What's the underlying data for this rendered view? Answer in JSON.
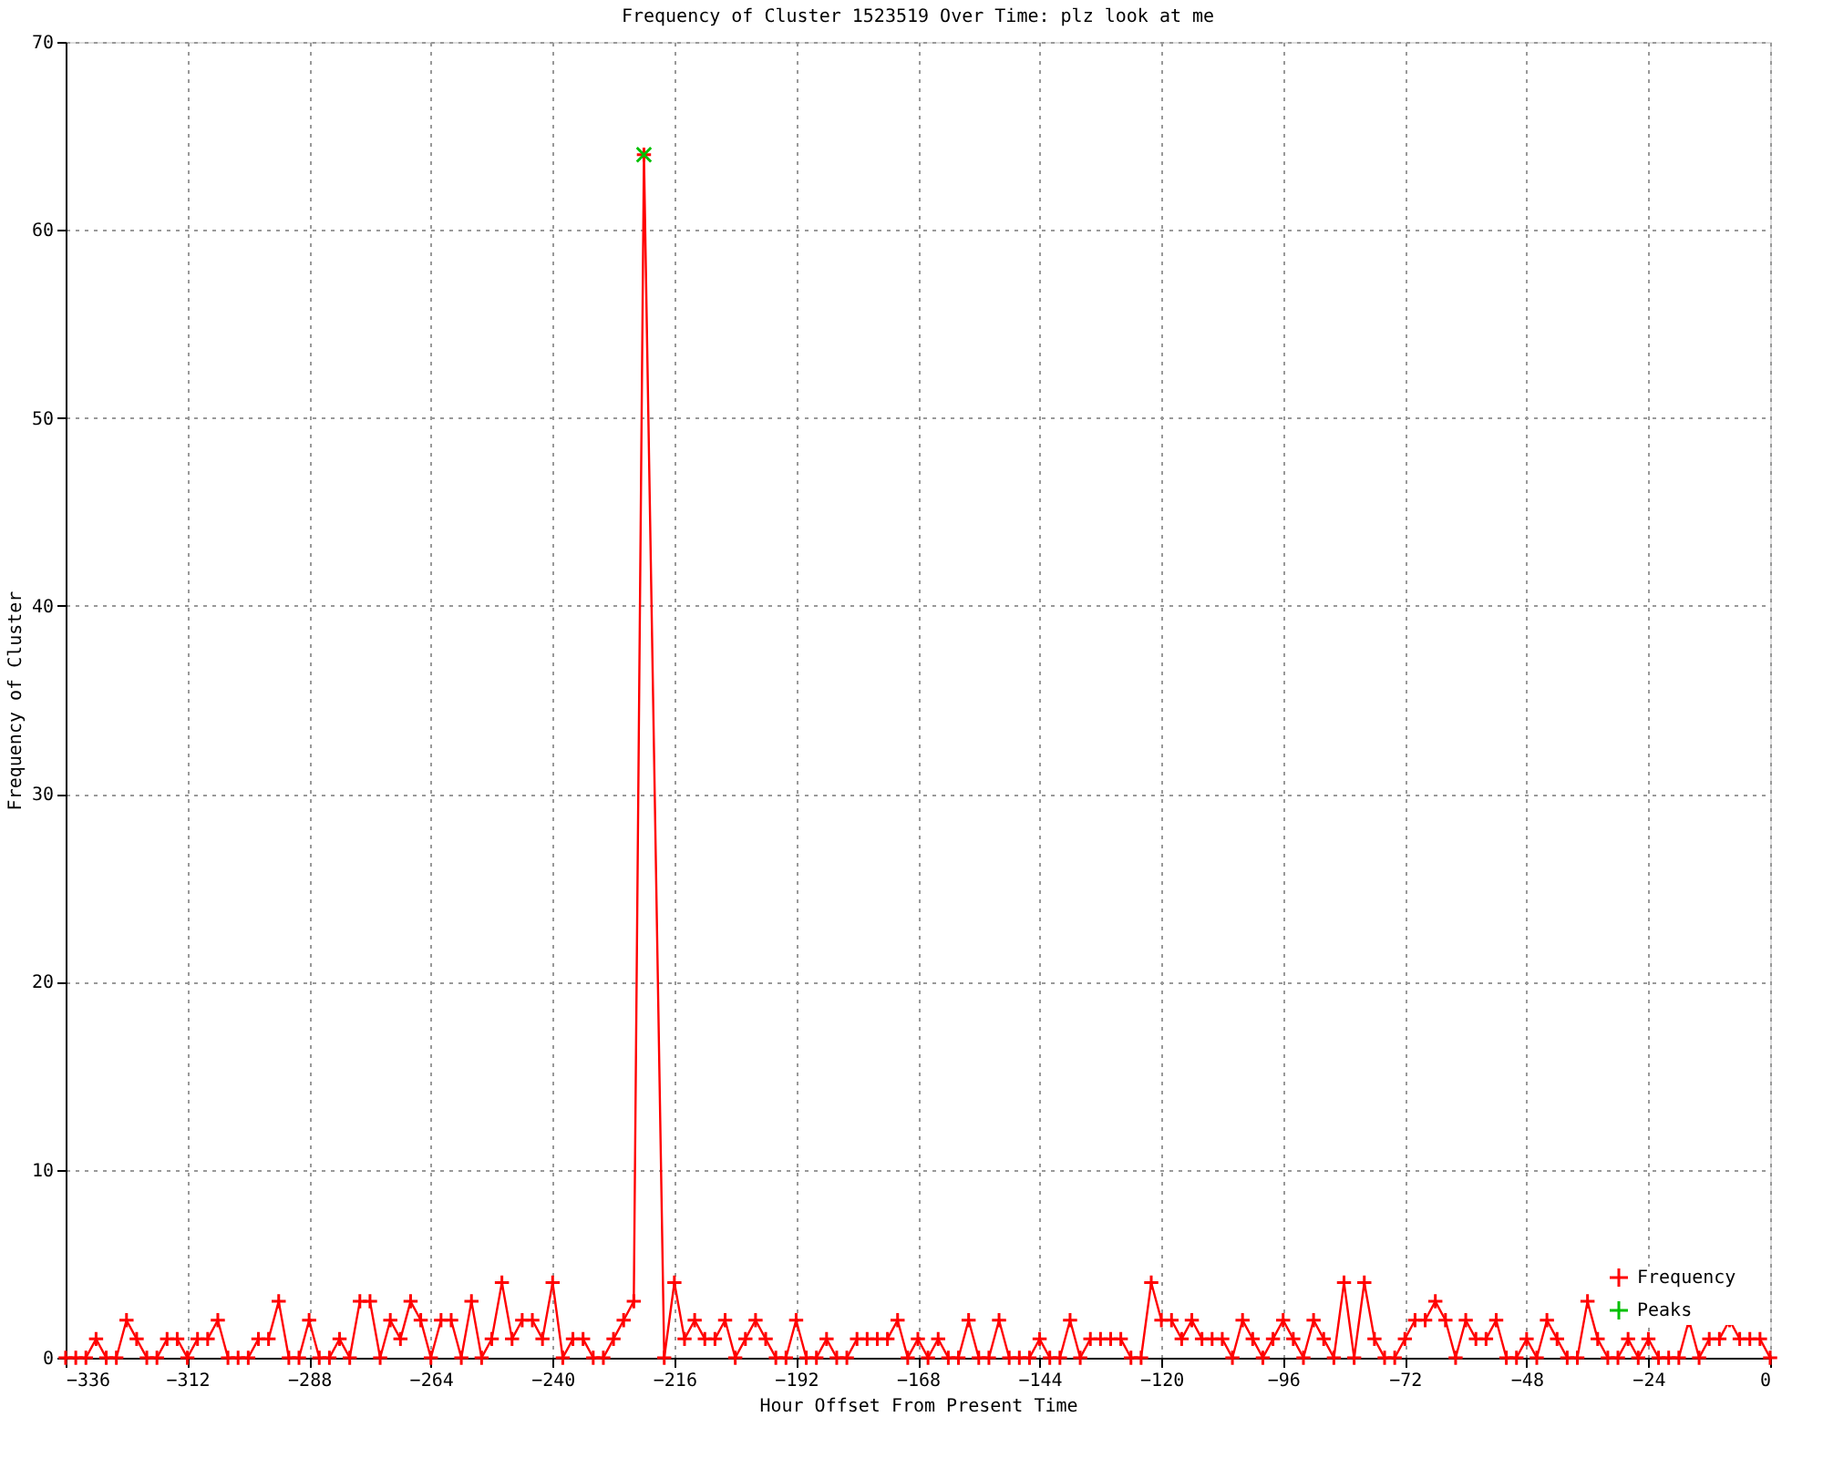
{
  "chart_data": {
    "type": "line",
    "title": "Frequency of Cluster 1523519 Over Time: plz look at me",
    "xlabel": "Hour Offset From Present Time",
    "ylabel": "Frequency of Cluster",
    "xlim": [
      -336,
      0
    ],
    "xticks": [
      -336,
      -312,
      -288,
      -264,
      -240,
      -216,
      -192,
      -168,
      -144,
      -120,
      -96,
      -72,
      -48,
      -24,
      0
    ],
    "ylim": [
      0,
      70
    ],
    "yticks": [
      0,
      10,
      20,
      30,
      40,
      50,
      60,
      70
    ],
    "grid": true,
    "legend": "bottom right",
    "marker": "cross",
    "line_style": "solid",
    "series": [
      {
        "name": "Frequency",
        "color": "#ff0000",
        "x": [
          -336,
          -334,
          -332,
          -330,
          -328,
          -326,
          -324,
          -322,
          -320,
          -318,
          -316,
          -314,
          -312,
          -310,
          -308,
          -306,
          -304,
          -302,
          -300,
          -298,
          -296,
          -294,
          -292,
          -290,
          -288,
          -286,
          -284,
          -282,
          -280,
          -278,
          -276,
          -274,
          -272,
          -270,
          -268,
          -266,
          -264,
          -262,
          -260,
          -258,
          -256,
          -254,
          -252,
          -250,
          -248,
          -246,
          -244,
          -242,
          -240,
          -238,
          -236,
          -234,
          -232,
          -230,
          -228,
          -226,
          -224,
          -222,
          -218,
          -216,
          -214,
          -212,
          -210,
          -208,
          -206,
          -204,
          -202,
          -200,
          -198,
          -196,
          -194,
          -192,
          -190,
          -188,
          -186,
          -184,
          -182,
          -180,
          -178,
          -176,
          -174,
          -172,
          -170,
          -168,
          -166,
          -164,
          -162,
          -160,
          -158,
          -156,
          -154,
          -152,
          -150,
          -148,
          -146,
          -144,
          -142,
          -140,
          -138,
          -136,
          -134,
          -132,
          -130,
          -128,
          -126,
          -124,
          -122,
          -120,
          -118,
          -116,
          -114,
          -112,
          -110,
          -108,
          -106,
          -104,
          -102,
          -100,
          -98,
          -96,
          -94,
          -92,
          -90,
          -88,
          -86,
          -84,
          -82,
          -80,
          -78,
          -76,
          -74,
          -72,
          -70,
          -68,
          -66,
          -64,
          -62,
          -60,
          -58,
          -56,
          -54,
          -52,
          -50,
          -48,
          -46,
          -44,
          -42,
          -40,
          -38,
          -36,
          -34,
          -32,
          -30,
          -28,
          -26,
          -24,
          -22,
          -20,
          -18,
          -16,
          -14,
          -12,
          -10,
          -8,
          -6,
          -4,
          -2,
          0
        ],
        "values": [
          0,
          0,
          0,
          1,
          0,
          0,
          2,
          1,
          0,
          0,
          1,
          1,
          0,
          1,
          1,
          2,
          0,
          0,
          0,
          1,
          1,
          3,
          0,
          0,
          2,
          0,
          0,
          1,
          0,
          3,
          3,
          0,
          2,
          1,
          3,
          2,
          0,
          2,
          2,
          0,
          3,
          0,
          1,
          4,
          1,
          2,
          2,
          1,
          4,
          0,
          1,
          1,
          0,
          0,
          1,
          2,
          3,
          64,
          0,
          4,
          1,
          2,
          1,
          1,
          2,
          0,
          1,
          2,
          1,
          0,
          0,
          2,
          0,
          0,
          1,
          0,
          0,
          1,
          1,
          1,
          1,
          2,
          0,
          1,
          0,
          1,
          0,
          0,
          2,
          0,
          0,
          2,
          0,
          0,
          0,
          1,
          0,
          0,
          2,
          0,
          1,
          1,
          1,
          1,
          0,
          0,
          4,
          2,
          2,
          1,
          2,
          1,
          1,
          1,
          0,
          2,
          1,
          0,
          1,
          2,
          1,
          0,
          2,
          1,
          0,
          4,
          0,
          4,
          1,
          0,
          0,
          1,
          2,
          2,
          3,
          2,
          0,
          2,
          1,
          1,
          2,
          0,
          0,
          1,
          0,
          2,
          1,
          0,
          0,
          3,
          1,
          0,
          0,
          1,
          0,
          1,
          0,
          0,
          0,
          2,
          0,
          1,
          1,
          2,
          1,
          1,
          1,
          0
        ]
      },
      {
        "name": "Peaks",
        "color": "#00c000",
        "type": "scatter",
        "x": [
          -222
        ],
        "values": [
          64
        ]
      }
    ]
  }
}
